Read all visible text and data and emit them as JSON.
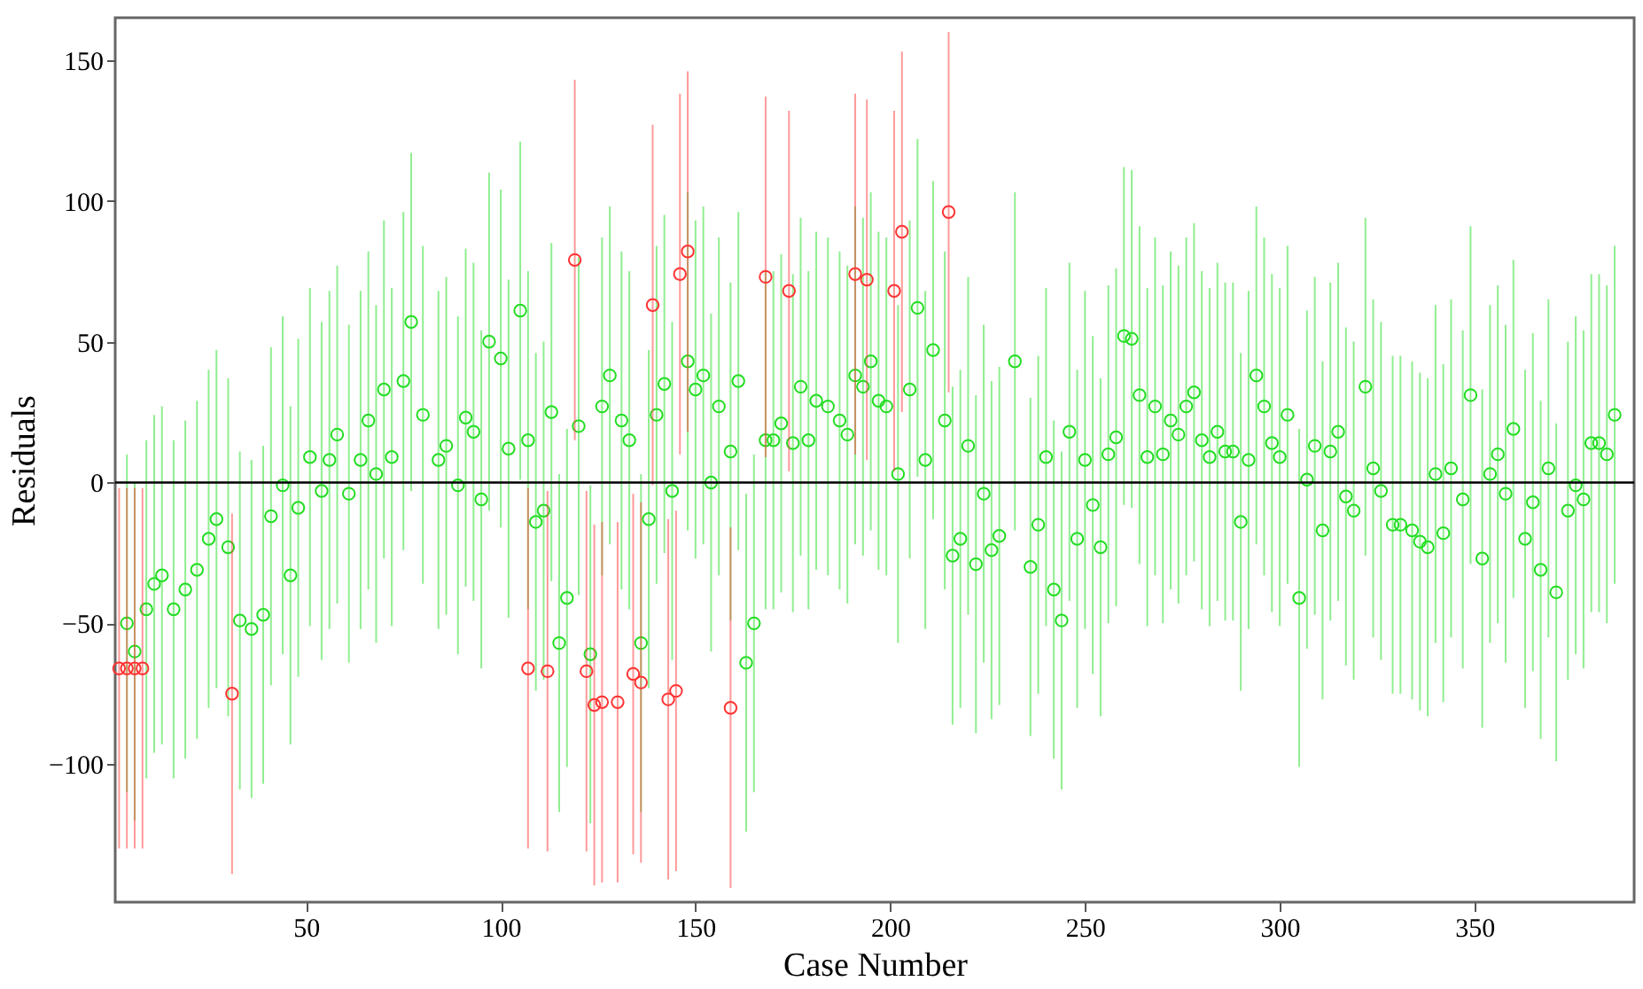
{
  "chart_data": {
    "type": "scatter",
    "xlabel": "Case Number",
    "ylabel": "Residuals",
    "xlim": [
      1,
      391
    ],
    "ylim": [
      -149,
      165
    ],
    "xticks": [
      50,
      100,
      150,
      200,
      250,
      300,
      350
    ],
    "yticks": [
      -100,
      -50,
      0,
      50,
      100,
      150
    ],
    "grid": false,
    "marker": "circle",
    "ref_lines": [
      {
        "axis": "y",
        "value": 0,
        "color": "#000000"
      }
    ],
    "series": [
      {
        "color": "#22dd22",
        "x": [
          4,
          6,
          9,
          11,
          13,
          16,
          19,
          22,
          25,
          27,
          30,
          33,
          36,
          39,
          41,
          44,
          46,
          48,
          51,
          54,
          56,
          58,
          61,
          64,
          66,
          68,
          70,
          72,
          75,
          77,
          80,
          84,
          86,
          89,
          91,
          93,
          95,
          97,
          100,
          102,
          105,
          107,
          109,
          111,
          113,
          115,
          117,
          120,
          123,
          126,
          128,
          131,
          133,
          136,
          138,
          140,
          142,
          144,
          148,
          150,
          152,
          154,
          156,
          159,
          161,
          163,
          165,
          168,
          170,
          172,
          175,
          177,
          179,
          181,
          184,
          187,
          189,
          191,
          193,
          195,
          197,
          199,
          202,
          205,
          207,
          209,
          211,
          214,
          216,
          218,
          220,
          222,
          224,
          226,
          228,
          232,
          236,
          238,
          240,
          242,
          244,
          246,
          248,
          250,
          252,
          254,
          256,
          258,
          260,
          262,
          264,
          266,
          268,
          270,
          272,
          274,
          276,
          278,
          280,
          282,
          284,
          286,
          288,
          290,
          292,
          294,
          296,
          298,
          300,
          302,
          305,
          307,
          309,
          311,
          313,
          315,
          317,
          319,
          322,
          324,
          326,
          329,
          331,
          334,
          336,
          338,
          340,
          342,
          344,
          347,
          349,
          352,
          354,
          356,
          358,
          360,
          363,
          365,
          367,
          369,
          371,
          374,
          376,
          378,
          380,
          382,
          384,
          386
        ],
        "values": [
          -50,
          -60,
          -45,
          -36,
          -33,
          -45,
          -38,
          -31,
          -20,
          -13,
          -23,
          -49,
          -52,
          -47,
          -12,
          -1,
          -33,
          -9,
          9,
          -3,
          8,
          17,
          -4,
          8,
          22,
          3,
          33,
          9,
          36,
          57,
          24,
          8,
          13,
          -1,
          23,
          18,
          -6,
          50,
          44,
          12,
          61,
          15,
          -14,
          -10,
          25,
          -57,
          -41,
          20,
          -61,
          27,
          38,
          22,
          15,
          -57,
          -13,
          24,
          35,
          -3,
          43,
          33,
          38,
          0,
          27,
          11,
          36,
          -64,
          -50,
          15,
          15,
          21,
          14,
          34,
          15,
          29,
          27,
          22,
          17,
          38,
          34,
          43,
          29,
          27,
          3,
          33,
          62,
          8,
          47,
          22,
          -26,
          -20,
          13,
          -29,
          -4,
          -24,
          -19,
          43,
          -30,
          -15,
          9,
          -38,
          -49,
          18,
          -20,
          8,
          -8,
          -23,
          10,
          16,
          52,
          51,
          31,
          9,
          27,
          10,
          22,
          17,
          27,
          32,
          15,
          9,
          18,
          11,
          11,
          -14,
          8,
          38,
          27,
          14,
          9,
          24,
          -41,
          1,
          13,
          -17,
          11,
          18,
          -5,
          -10,
          34,
          5,
          -3,
          -15,
          -15,
          -17,
          -21,
          -23,
          3,
          -18,
          5,
          -6,
          31,
          -27,
          3,
          10,
          -4,
          19,
          -20,
          -7,
          -31,
          5,
          -39,
          -10,
          -1,
          -6,
          14,
          14,
          10,
          24
        ],
        "errors": [
          60,
          60,
          60,
          60,
          60,
          60,
          60,
          60,
          60,
          60,
          60,
          60,
          60,
          60,
          60,
          60,
          60,
          60,
          60,
          60,
          60,
          60,
          60,
          60,
          60,
          60,
          60,
          60,
          60,
          60,
          60,
          60,
          60,
          60,
          60,
          60,
          60,
          60,
          60,
          60,
          60,
          60,
          60,
          60,
          60,
          60,
          60,
          60,
          60,
          60,
          60,
          60,
          60,
          60,
          60,
          60,
          60,
          60,
          60,
          60,
          60,
          60,
          60,
          60,
          60,
          60,
          60,
          60,
          60,
          60,
          60,
          60,
          60,
          60,
          60,
          60,
          60,
          60,
          60,
          60,
          60,
          60,
          60,
          60,
          60,
          60,
          60,
          60,
          60,
          60,
          60,
          60,
          60,
          60,
          60,
          60,
          60,
          60,
          60,
          60,
          60,
          60,
          60,
          60,
          60,
          60,
          60,
          60,
          60,
          60,
          60,
          60,
          60,
          60,
          60,
          60,
          60,
          60,
          60,
          60,
          60,
          60,
          60,
          60,
          60,
          60,
          60,
          60,
          60,
          60,
          60,
          60,
          60,
          60,
          60,
          60,
          60,
          60,
          60,
          60,
          60,
          60,
          60,
          60,
          60,
          60,
          60,
          60,
          60,
          60,
          60,
          60,
          60,
          60,
          60,
          60,
          60,
          60,
          60,
          60,
          60,
          60,
          60,
          60,
          60,
          60,
          60,
          60
        ]
      },
      {
        "color": "#ff3333",
        "x": [
          2,
          4,
          6,
          8,
          31,
          107,
          112,
          119,
          122,
          124,
          126,
          130,
          134,
          136,
          139,
          143,
          145,
          146,
          148,
          159,
          168,
          174,
          191,
          194,
          201,
          203,
          215
        ],
        "values": [
          -66,
          -66,
          -66,
          -66,
          -75,
          -66,
          -67,
          79,
          -67,
          -79,
          -78,
          -78,
          -68,
          -71,
          63,
          -77,
          -74,
          74,
          82,
          -80,
          73,
          68,
          74,
          72,
          68,
          89,
          96
        ],
        "errors": [
          64,
          64,
          64,
          64,
          64,
          64,
          64,
          64,
          64,
          64,
          64,
          64,
          64,
          64,
          64,
          64,
          64,
          64,
          64,
          64,
          64,
          64,
          64,
          64,
          64,
          64,
          64
        ]
      }
    ]
  }
}
